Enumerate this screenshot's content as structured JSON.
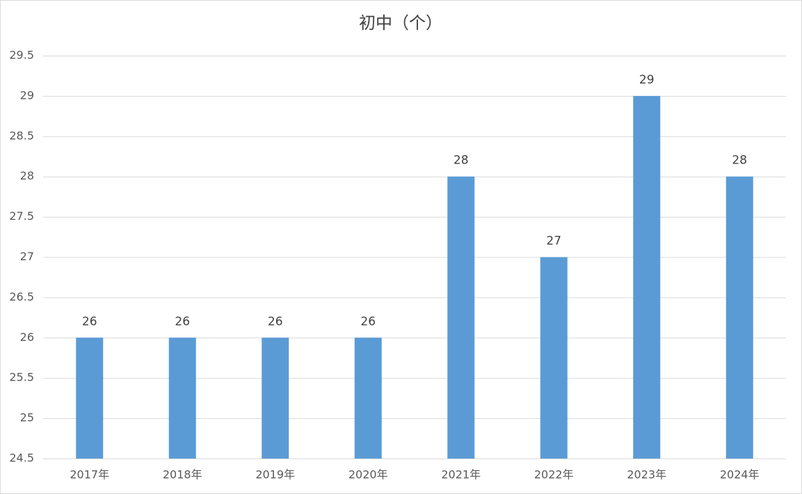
{
  "chart_data": {
    "type": "bar",
    "title": "初中（个）",
    "categories": [
      "2017年",
      "2018年",
      "2019年",
      "2020年",
      "2021年",
      "2022年",
      "2023年",
      "2024年"
    ],
    "values": [
      26,
      26,
      26,
      26,
      28,
      27,
      29,
      28
    ],
    "color": "#5b9bd5",
    "ylim": [
      24.5,
      29.5
    ],
    "yticks": [
      24.5,
      25,
      25.5,
      26,
      26.5,
      27,
      27.5,
      28,
      28.5,
      29,
      29.5
    ],
    "grid": true
  }
}
